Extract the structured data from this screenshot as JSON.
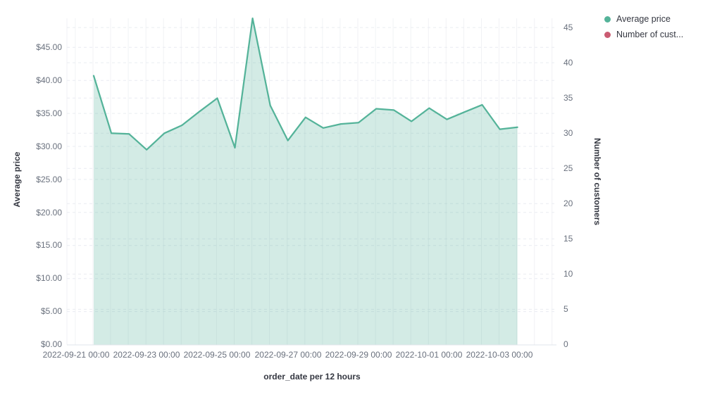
{
  "legend": {
    "items": [
      {
        "label": "Average price",
        "color": "#54B399"
      },
      {
        "label": "Number of cust...",
        "color": "#CA5B72"
      }
    ]
  },
  "axes": {
    "left": {
      "title": "Average price",
      "ticks": [
        "$0.00",
        "$5.00",
        "$10.00",
        "$15.00",
        "$20.00",
        "$25.00",
        "$30.00",
        "$35.00",
        "$40.00",
        "$45.00"
      ]
    },
    "right": {
      "title": "Number of customers",
      "ticks": [
        "0",
        "5",
        "10",
        "15",
        "20",
        "25",
        "30",
        "35",
        "40",
        "45"
      ]
    },
    "x": {
      "title": "order_date per 12 hours",
      "ticks": [
        "2022-09-21 00:00",
        "2022-09-23 00:00",
        "2022-09-25 00:00",
        "2022-09-27 00:00",
        "2022-09-29 00:00",
        "2022-10-01 00:00",
        "2022-10-03 00:00"
      ]
    }
  },
  "chart_data": {
    "type": "area",
    "title": "",
    "xlabel": "order_date per 12 hours",
    "ylabel_left": "Average price",
    "ylabel_right": "Number of customers",
    "x_interval": "12 hours",
    "legend_position": "top-right",
    "grid": true,
    "y_left_range": [
      0,
      49.4
    ],
    "y_right_range": [
      0,
      46.5
    ],
    "x": [
      "2022-09-21 12:00",
      "2022-09-22 00:00",
      "2022-09-22 12:00",
      "2022-09-23 00:00",
      "2022-09-23 12:00",
      "2022-09-24 00:00",
      "2022-09-24 12:00",
      "2022-09-25 00:00",
      "2022-09-25 12:00",
      "2022-09-26 00:00",
      "2022-09-26 12:00",
      "2022-09-27 00:00",
      "2022-09-27 12:00",
      "2022-09-28 00:00",
      "2022-09-28 12:00",
      "2022-09-29 00:00",
      "2022-09-29 12:00",
      "2022-09-30 00:00",
      "2022-09-30 12:00",
      "2022-10-01 00:00",
      "2022-10-01 12:00",
      "2022-10-02 00:00",
      "2022-10-02 12:00",
      "2022-10-03 00:00",
      "2022-10-03 12:00"
    ],
    "series": [
      {
        "name": "Average price",
        "axis": "left",
        "unit": "$",
        "color": "#54B399",
        "values": [
          40.7,
          32.0,
          31.9,
          29.5,
          32.0,
          33.2,
          35.3,
          37.3,
          29.8,
          49.4,
          36.2,
          30.9,
          34.4,
          32.8,
          33.4,
          33.6,
          35.7,
          35.5,
          33.8,
          35.8,
          34.1,
          35.2,
          36.3,
          32.6,
          32.9
        ]
      }
    ]
  }
}
